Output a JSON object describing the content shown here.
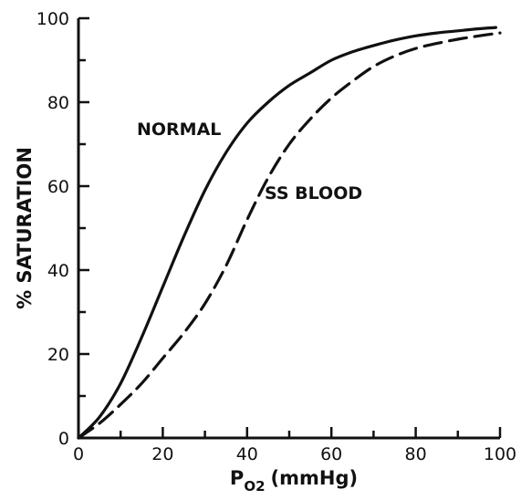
{
  "chart_data": {
    "type": "line",
    "xlabel": "P",
    "xlabel_sub": "O2",
    "xlabel_unit": "(mmHg)",
    "ylabel": "% SATURATION",
    "xlim": [
      0,
      100
    ],
    "ylim": [
      0,
      100
    ],
    "xticks": [
      0,
      20,
      40,
      60,
      80,
      100
    ],
    "yticks": [
      0,
      20,
      40,
      60,
      80,
      100
    ],
    "grid": false,
    "series": [
      {
        "name": "NORMAL",
        "style": "solid",
        "color": "#111111",
        "x": [
          0,
          5,
          10,
          15,
          20,
          25,
          30,
          35,
          40,
          45,
          50,
          55,
          60,
          65,
          70,
          75,
          80,
          85,
          90,
          95,
          99
        ],
        "y": [
          0,
          5,
          13,
          24,
          36,
          48,
          59,
          68,
          75,
          80,
          84,
          87,
          90,
          92,
          93.5,
          94.8,
          95.8,
          96.5,
          97,
          97.5,
          97.8
        ]
      },
      {
        "name": "SS BLOOD",
        "style": "dashed",
        "color": "#111111",
        "x": [
          0,
          5,
          10,
          15,
          20,
          25,
          30,
          35,
          40,
          45,
          50,
          55,
          60,
          65,
          70,
          75,
          80,
          85,
          90,
          95,
          100
        ],
        "y": [
          0,
          3.5,
          8,
          13,
          19,
          25,
          32,
          41,
          52,
          62,
          70,
          76,
          81,
          85,
          88.5,
          91,
          92.8,
          94,
          95,
          95.8,
          96.5
        ]
      }
    ]
  }
}
